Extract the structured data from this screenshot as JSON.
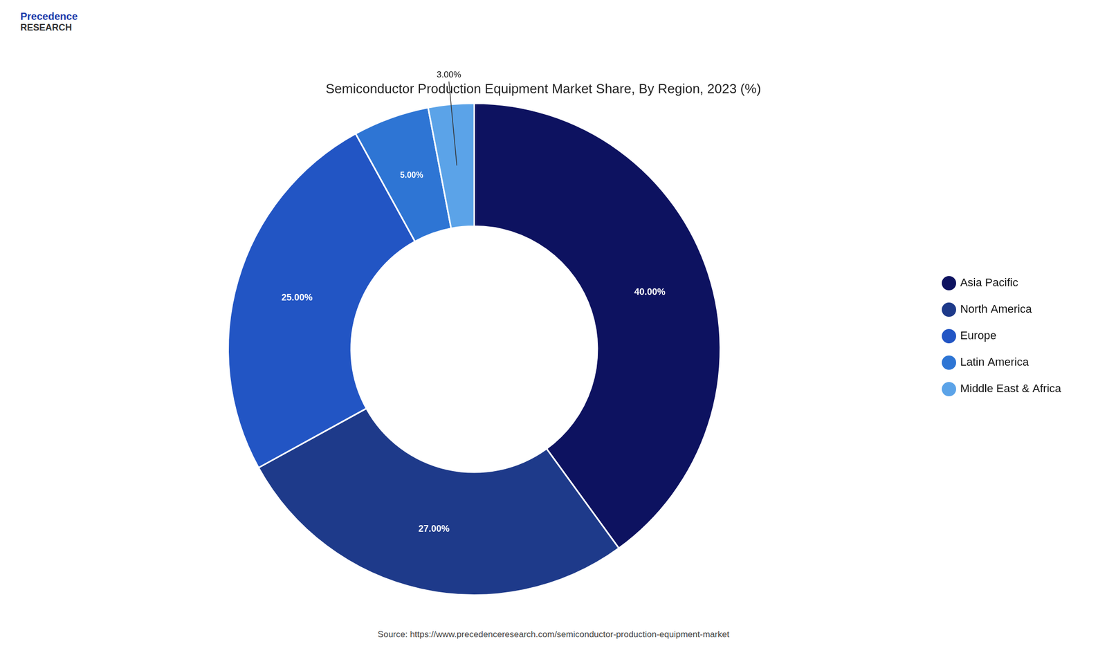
{
  "chart_data": {
    "type": "doughnut",
    "title": "Semiconductor Production Equipment Market Share, By Region, 2023 (%)",
    "categories": [
      "Asia Pacific",
      "North America",
      "Europe",
      "Latin America",
      "Middle East & Africa"
    ],
    "values": [
      40.0,
      27.0,
      25.0,
      5.0,
      3.0
    ],
    "value_labels": [
      "40.00%",
      "27.00%",
      "25.00%",
      "5.00%",
      "3.00%"
    ],
    "colors": [
      "#0d1260",
      "#1e3a8a",
      "#2255c4",
      "#2e75d4",
      "#5ba3e8"
    ],
    "data_labels": true,
    "legend": "right",
    "annotations": [
      "Precedence",
      "RESEARCH",
      "Source: https://www.precedenceresearch.com/semiconductor-production-equipment-market"
    ]
  }
}
